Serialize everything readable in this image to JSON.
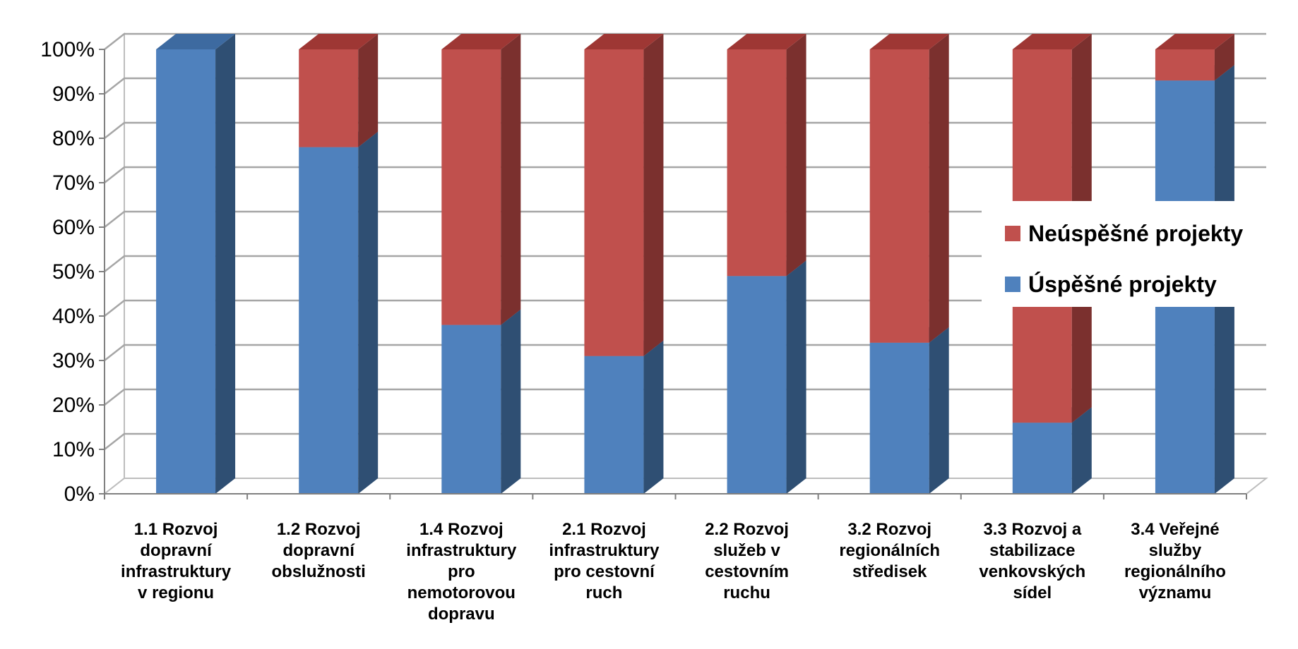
{
  "chart_data": {
    "type": "bar",
    "stacked": true,
    "three_d": true,
    "y_tick_labels": [
      "0%",
      "10%",
      "20%",
      "30%",
      "40%",
      "50%",
      "60%",
      "70%",
      "80%",
      "90%",
      "100%"
    ],
    "ylim": [
      0,
      100
    ],
    "grid": true,
    "legend_position": "right",
    "categories": [
      [
        "1.1 Rozvoj",
        "dopravní",
        "infrastruktury",
        "v regionu"
      ],
      [
        "1.2 Rozvoj",
        "dopravní",
        "obslužnosti"
      ],
      [
        "1.4 Rozvoj",
        "infrastruktury",
        "pro",
        "nemotorovou",
        "dopravu"
      ],
      [
        "2.1 Rozvoj",
        "infrastruktury",
        "pro cestovní",
        "ruch"
      ],
      [
        "2.2 Rozvoj",
        "služeb v",
        "cestovním",
        "ruchu"
      ],
      [
        "3.2 Rozvoj",
        "regionálních",
        "středisek"
      ],
      [
        "3.3 Rozvoj a",
        "stabilizace",
        "venkovských",
        "sídel"
      ],
      [
        "3.4 Veřejné",
        "služby",
        "regionálního",
        "významu"
      ]
    ],
    "series": [
      {
        "name": "Úspěšné projekty",
        "color": "#4f81bd",
        "side_color": "#2f4f73",
        "top_color": "#3d6aa0",
        "values": [
          100,
          78,
          38,
          31,
          49,
          34,
          16,
          93
        ]
      },
      {
        "name": "Neúspěšné projekty",
        "color": "#c0504d",
        "side_color": "#7b302e",
        "top_color": "#9e3734",
        "values": [
          0,
          22,
          62,
          69,
          51,
          66,
          84,
          7
        ]
      }
    ],
    "legend_order": [
      "Neúspěšné projekty",
      "Úspěšné projekty"
    ]
  }
}
